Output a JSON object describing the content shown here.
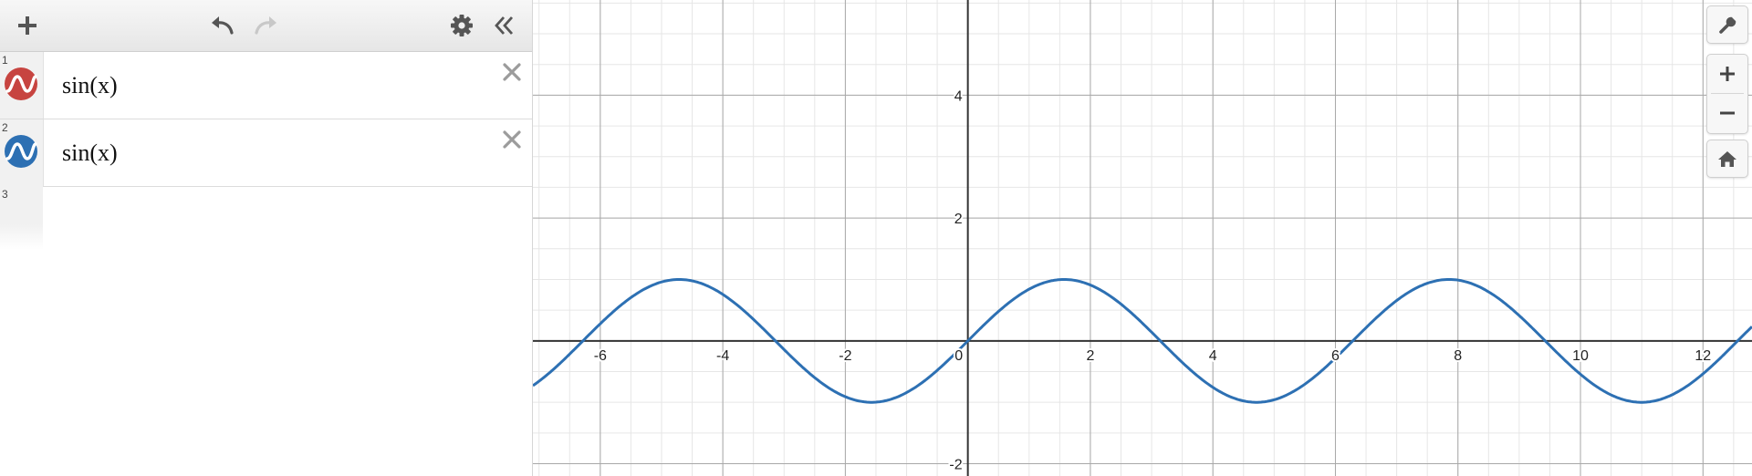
{
  "toolbar": {
    "icons": [
      "plus-icon",
      "undo-icon",
      "redo-icon",
      "gear-icon",
      "collapse-panel-icon"
    ],
    "redo_enabled": false
  },
  "expressions": [
    {
      "index": "1",
      "latex_text": "sin(x)",
      "color": "#c74440",
      "icon": "wave-icon"
    },
    {
      "index": "2",
      "latex_text": "sin(x)",
      "color": "#2d70b3",
      "icon": "wave-icon"
    }
  ],
  "empty_expression": {
    "index": "3"
  },
  "graph_controls": {
    "icons": [
      "wrench-icon",
      "zoom-in-icon",
      "zoom-out-icon",
      "home-icon"
    ]
  },
  "colors": {
    "curve": "#2d70b3",
    "axis": "#333333",
    "major_grid": "#a8a8a8",
    "minor_grid": "#e6e6e6"
  },
  "chart_data": {
    "type": "line",
    "function": "sin(x)",
    "xlim": [
      -7.1,
      12.8
    ],
    "ylim": [
      -2.2,
      5.55
    ],
    "x_tick_labels": [
      "-6",
      "-4",
      "-2",
      "0",
      "2",
      "4",
      "6",
      "8",
      "10",
      "12"
    ],
    "y_tick_labels": [
      "4",
      "2",
      "-2"
    ],
    "grid": true,
    "series": [
      {
        "function": "sin(x)",
        "color": "#2d70b3",
        "visible": true
      }
    ]
  }
}
